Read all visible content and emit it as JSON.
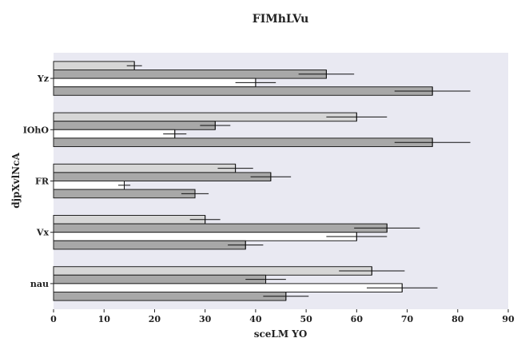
{
  "chart_data": {
    "type": "bar",
    "orientation": "horizontal",
    "title": "FIMhLVu",
    "xlabel": "sceLM YO",
    "ylabel": "djpXvlNcA",
    "categories": [
      "nau",
      "Vx",
      "FR",
      "IOhO",
      "Yz"
    ],
    "xlim": [
      0,
      90
    ],
    "xticks": [
      0,
      10,
      20,
      30,
      40,
      50,
      60,
      70,
      80,
      90
    ],
    "grid": false,
    "legend": "none",
    "plot_background": "#e9e9f2",
    "series": [
      {
        "color": "#d6d6d6",
        "values": [
          63,
          30,
          36,
          60,
          16
        ],
        "errors": [
          6.5,
          3,
          3.5,
          6,
          1.5
        ]
      },
      {
        "color": "#a8a8a8",
        "values": [
          42,
          66,
          43,
          32,
          54
        ],
        "errors": [
          4,
          6.5,
          4,
          3,
          5.5
        ]
      },
      {
        "color": "#ffffff",
        "values": [
          69,
          60,
          14,
          24,
          40
        ],
        "errors": [
          7,
          6,
          1.2,
          2.3,
          4
        ]
      },
      {
        "color": "#a8a8a8",
        "values": [
          46,
          38,
          28,
          75,
          75
        ],
        "errors": [
          4.5,
          3.5,
          2.7,
          7.5,
          7.5
        ]
      }
    ]
  }
}
